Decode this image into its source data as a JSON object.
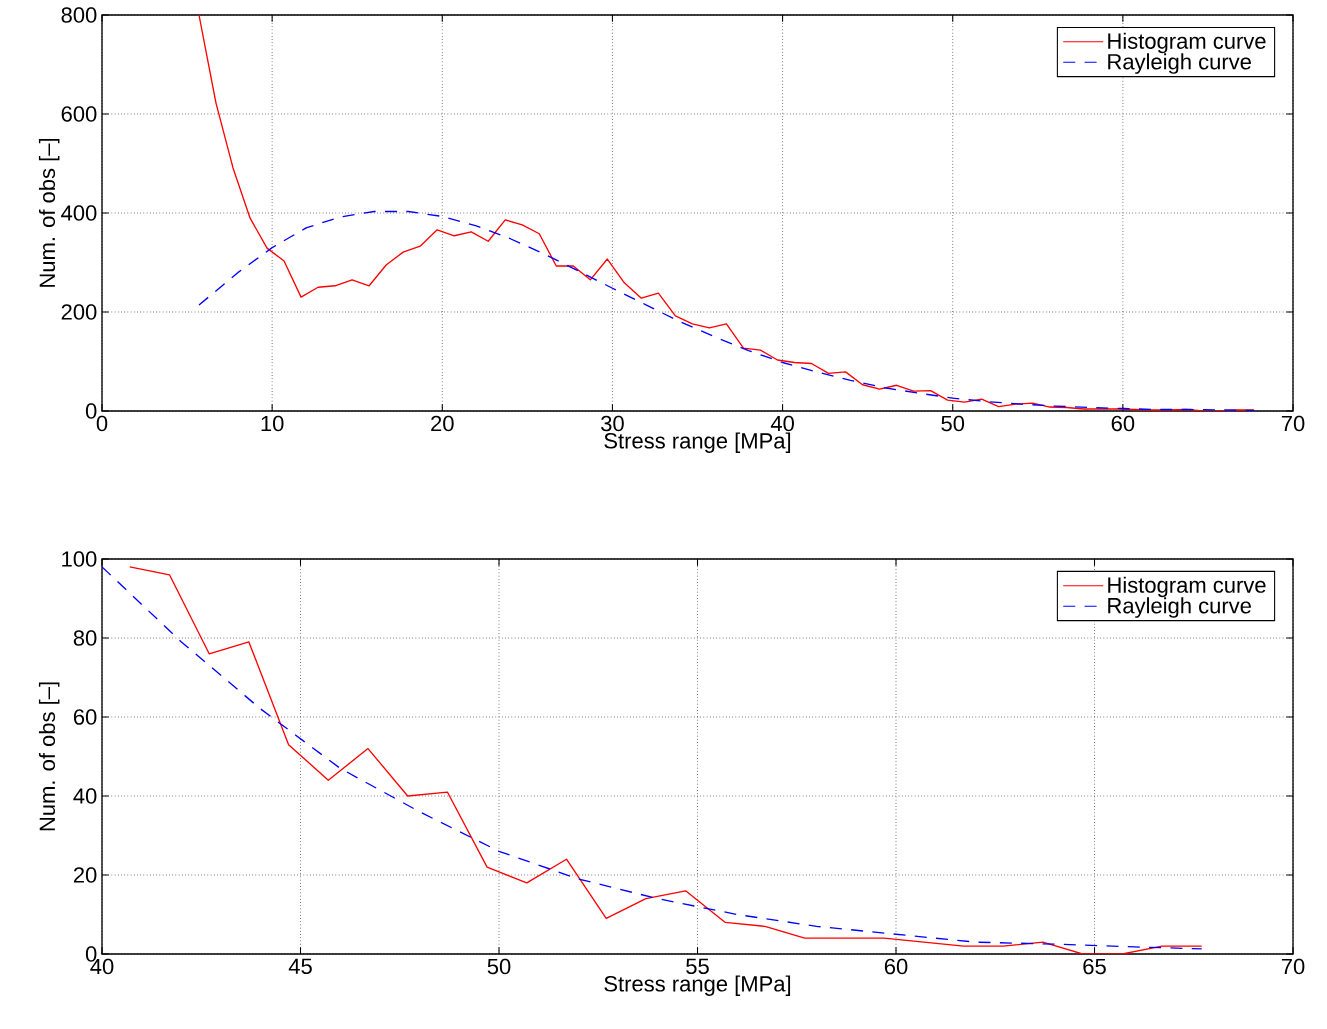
{
  "chart_data": [
    {
      "type": "line",
      "xlabel": "Stress range [MPa]",
      "ylabel": "Num. of obs [–]",
      "xlim": [
        0,
        70
      ],
      "ylim": [
        0,
        800
      ],
      "xticks": [
        0,
        10,
        20,
        30,
        40,
        50,
        60,
        70
      ],
      "yticks": [
        0,
        200,
        400,
        600,
        800
      ],
      "grid": true,
      "legend": "top right",
      "series": [
        {
          "name": "Histogram curve",
          "color": "#ff0000",
          "line_style": "solid",
          "x": [
            5.7,
            6.7,
            7.7,
            8.7,
            9.7,
            10.7,
            11.7,
            12.7,
            13.7,
            14.7,
            15.7,
            16.7,
            17.7,
            18.7,
            19.7,
            20.7,
            21.7,
            22.7,
            23.7,
            24.7,
            25.7,
            26.7,
            27.7,
            28.7,
            29.7,
            30.7,
            31.7,
            32.7,
            33.7,
            34.7,
            35.7,
            36.7,
            37.7,
            38.7,
            39.7,
            40.7,
            41.7,
            42.7,
            43.7,
            44.7,
            45.7,
            46.7,
            47.7,
            48.7,
            49.7,
            50.7,
            51.7,
            52.7,
            53.7,
            54.7,
            55.7,
            56.7,
            57.7,
            58.7,
            59.7,
            60.7,
            61.7,
            62.7,
            63.7,
            64.7,
            65.7,
            66.7,
            67.7
          ],
          "values": [
            800,
            622,
            491,
            390,
            329,
            303,
            230,
            250,
            253,
            265,
            253,
            295,
            321,
            333,
            366,
            354,
            362,
            343,
            386,
            376,
            358,
            293,
            293,
            265,
            307,
            259,
            228,
            238,
            192,
            176,
            168,
            176,
            127,
            123,
            103,
            98,
            96,
            76,
            79,
            53,
            44,
            52,
            40,
            41,
            22,
            18,
            24,
            9,
            14,
            16,
            8,
            7,
            4,
            4,
            4,
            3,
            2,
            2,
            3,
            0,
            0,
            2,
            2
          ]
        },
        {
          "name": "Rayleigh curve",
          "color": "#0000ff",
          "line_style": "dashed",
          "x": [
            5.7,
            8,
            10,
            12,
            14,
            16,
            18,
            20,
            22,
            24,
            26,
            28,
            30,
            32,
            34,
            36,
            38,
            40,
            42,
            44,
            46,
            48,
            50,
            52,
            54,
            56,
            58,
            60,
            62,
            64,
            66,
            67.7
          ],
          "values": [
            214,
            280,
            330,
            370,
            392,
            403,
            403,
            393,
            374,
            348,
            317,
            283,
            248,
            214,
            180,
            150,
            122,
            98,
            79,
            62,
            47,
            36,
            26,
            19,
            14,
            10,
            7,
            5,
            3,
            3,
            2,
            1
          ]
        }
      ]
    },
    {
      "type": "line",
      "xlabel": "Stress range [MPa]",
      "ylabel": "Num. of obs [–]",
      "xlim": [
        40,
        70
      ],
      "ylim": [
        0,
        100
      ],
      "xticks": [
        40,
        45,
        50,
        55,
        60,
        65,
        70
      ],
      "yticks": [
        0,
        20,
        40,
        60,
        80,
        100
      ],
      "grid": true,
      "legend": "top right",
      "series": [
        {
          "name": "Histogram curve",
          "color": "#ff0000",
          "line_style": "solid",
          "x": [
            40.7,
            41.7,
            42.7,
            43.7,
            44.7,
            45.7,
            46.7,
            47.7,
            48.7,
            49.7,
            50.7,
            51.7,
            52.7,
            53.7,
            54.7,
            55.7,
            56.7,
            57.7,
            58.7,
            59.7,
            60.7,
            61.7,
            62.7,
            63.7,
            64.7,
            65.7,
            66.7,
            67.7
          ],
          "values": [
            98,
            96,
            76,
            79,
            53,
            44,
            52,
            40,
            41,
            22,
            18,
            24,
            9,
            14,
            16,
            8,
            7,
            4,
            4,
            4,
            3,
            2,
            2,
            3,
            0,
            0,
            2,
            2
          ]
        },
        {
          "name": "Rayleigh curve",
          "color": "#0000ff",
          "line_style": "dashed",
          "x": [
            40,
            42,
            44,
            46,
            48,
            50,
            52,
            54,
            56,
            58,
            60,
            62,
            64,
            66,
            67.7
          ],
          "values": [
            98,
            79,
            62,
            47,
            36,
            26,
            19,
            14,
            10,
            7,
            5,
            3,
            2.5,
            1.8,
            1.3
          ]
        }
      ]
    }
  ]
}
